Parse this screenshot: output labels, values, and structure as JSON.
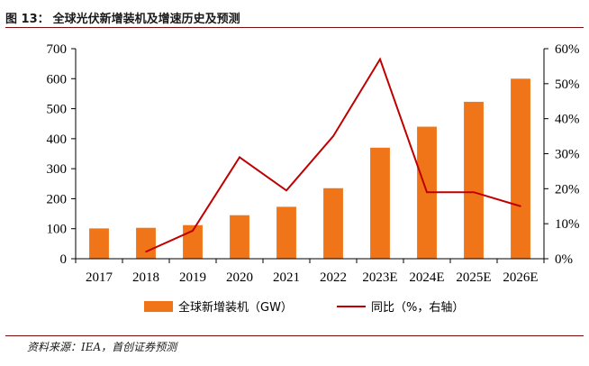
{
  "figure": {
    "number_label": "图 13：",
    "title": "全球光伏新增装机及增速历史及预测",
    "source": "资料来源：IEA，首创证券预测"
  },
  "chart_data": {
    "type": "bar",
    "categories": [
      "2017",
      "2018",
      "2019",
      "2020",
      "2021",
      "2022",
      "2023E",
      "2024E",
      "2025E",
      "2026E"
    ],
    "series": [
      {
        "name": "全球新增装机（GW）",
        "type": "bar",
        "axis": "left",
        "color": "#f07518",
        "values": [
          101,
          103,
          112,
          145,
          173,
          235,
          370,
          440,
          523,
          600
        ]
      },
      {
        "name": "同比（%，右轴）",
        "type": "line",
        "axis": "right",
        "color": "#c00000",
        "values": [
          null,
          2,
          8,
          29,
          19.5,
          35,
          57,
          19,
          19,
          15
        ]
      }
    ],
    "y_left": {
      "min": 0,
      "max": 700,
      "ticks": [
        "0",
        "100",
        "200",
        "300",
        "400",
        "500",
        "600",
        "700"
      ]
    },
    "y_right": {
      "min": 0,
      "max": 60,
      "ticks": [
        "0%",
        "10%",
        "20%",
        "30%",
        "40%",
        "50%",
        "60%"
      ]
    },
    "grid": false,
    "legend_position": "bottom"
  }
}
